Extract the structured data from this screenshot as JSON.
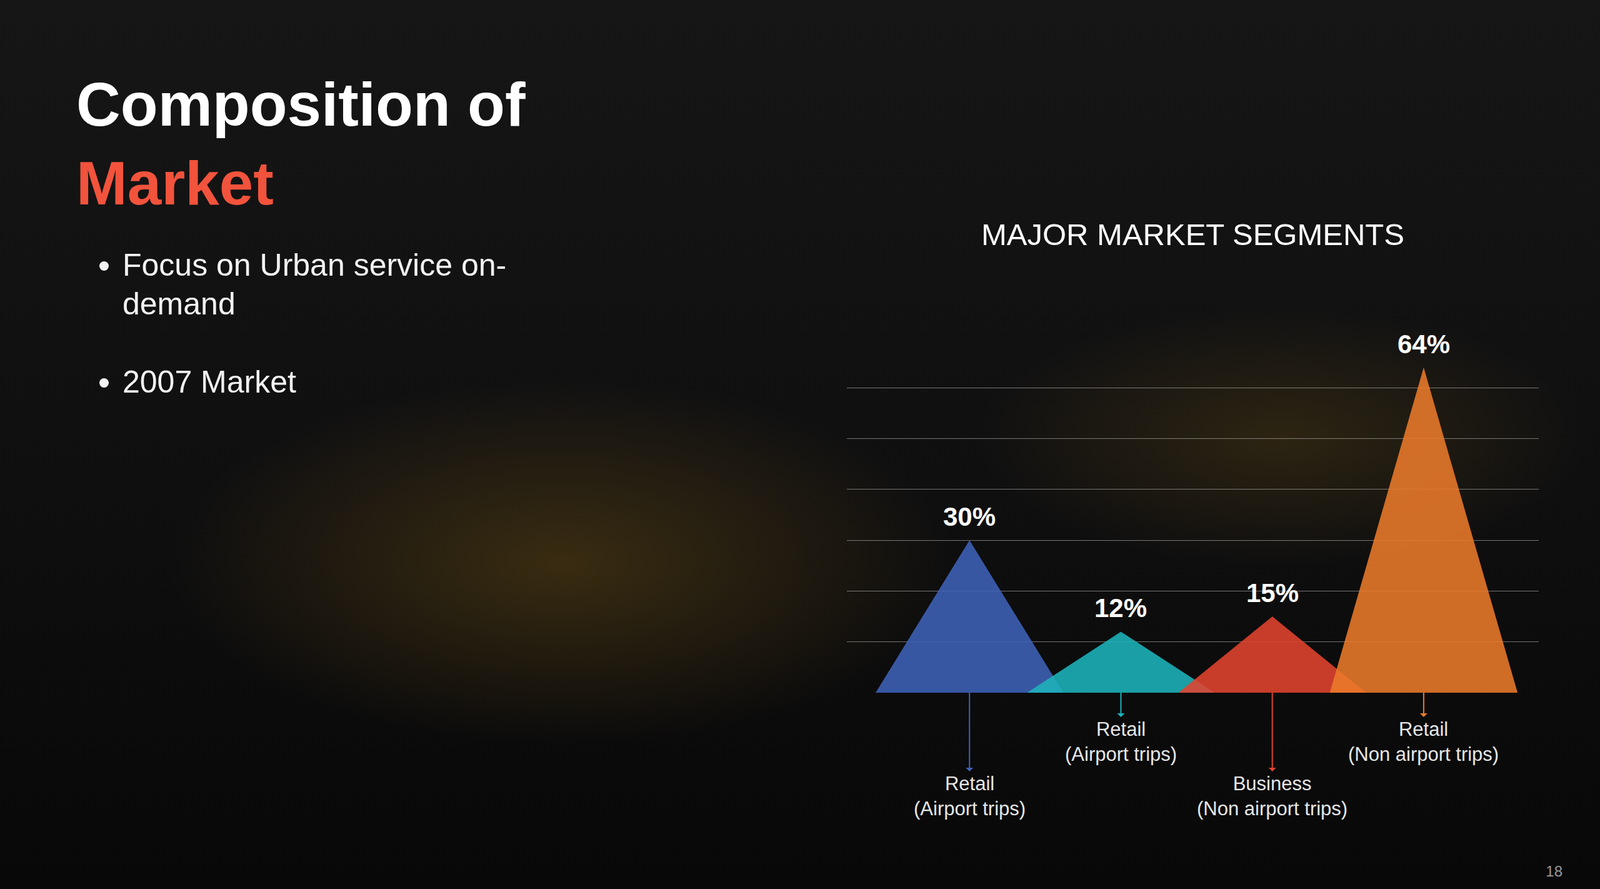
{
  "slide": {
    "title_line1": "Composition of",
    "title_line2": "Market",
    "bullets": [
      "Focus on Urban service on-demand",
      "2007 Market"
    ],
    "page_number": "18"
  },
  "chart_data": {
    "type": "triangle",
    "title": "MAJOR MARKET SEGMENTS",
    "categories": [
      "Retail (Airport trips)",
      "Retail (Airport trips)",
      "Business (Non airport trips)",
      "Retail (Non airport trips)"
    ],
    "values": [
      30,
      12,
      15,
      64
    ],
    "value_labels": [
      "30%",
      "12%",
      "15%",
      "64%"
    ],
    "colors": [
      "#3f62b8",
      "#1cb4bc",
      "#e2432f",
      "#ea7a2a"
    ],
    "ylim": [
      0,
      70
    ],
    "yticks": [
      0,
      10,
      20,
      30,
      40,
      50,
      60,
      70
    ],
    "grid": true,
    "data_labels": true,
    "tick_labels": false
  }
}
